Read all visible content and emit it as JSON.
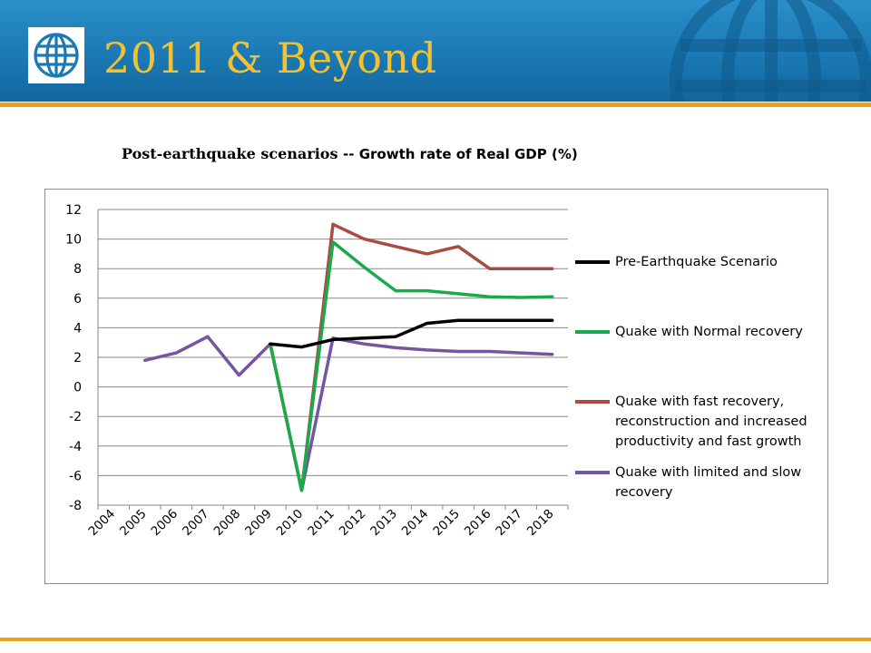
{
  "slide": {
    "title": "2011 & Beyond"
  },
  "colors": {
    "header_blue": "#1b79b4",
    "accent_gold": "#e9a21c",
    "title_yellow": "#f1c232"
  },
  "icons": {
    "logo": "world-bank-globe-icon",
    "watermark": "globe-watermark-icon"
  },
  "chart_data": {
    "type": "line",
    "title": "Post-earthquake scenarios",
    "subtitle": "-- Growth rate of Real GDP (%)",
    "xlabel": "",
    "ylabel": "",
    "x": [
      "2004",
      "2005",
      "2006",
      "2007",
      "2008",
      "2009",
      "2010",
      "2011",
      "2012",
      "2013",
      "2014",
      "2015",
      "2016",
      "2017",
      "2018"
    ],
    "ylim": [
      -8,
      12
    ],
    "yticks": [
      12,
      10,
      8,
      6,
      4,
      2,
      0,
      -2,
      -4,
      -6,
      -8
    ],
    "grid": true,
    "legend_position": "right",
    "series": [
      {
        "name": "Pre-Earthquake Scenario",
        "color": "#000000",
        "values": [
          null,
          null,
          null,
          null,
          null,
          2.9,
          2.7,
          3.2,
          3.3,
          3.4,
          4.3,
          4.5,
          4.5,
          4.5,
          4.5
        ]
      },
      {
        "name": "Quake with Normal recovery",
        "color": "#1aaa4c",
        "values": [
          null,
          null,
          null,
          null,
          null,
          2.9,
          -7.0,
          9.8,
          8.1,
          6.5,
          6.5,
          6.3,
          6.1,
          6.05,
          6.1
        ]
      },
      {
        "name": "Quake with fast recovery, reconstruction and increased productivity and fast growth",
        "color": "#a94a43",
        "values": [
          null,
          null,
          null,
          null,
          null,
          2.9,
          -7.0,
          11.0,
          10.0,
          9.5,
          9.0,
          9.5,
          8.0,
          8.0,
          8.0
        ]
      },
      {
        "name": "Quake with limited and slow recovery",
        "color": "#7655a0",
        "values": [
          null,
          1.8,
          2.3,
          3.4,
          0.8,
          2.9,
          -7.0,
          3.3,
          2.9,
          2.65,
          2.5,
          2.4,
          2.4,
          2.3,
          2.2
        ]
      }
    ]
  }
}
